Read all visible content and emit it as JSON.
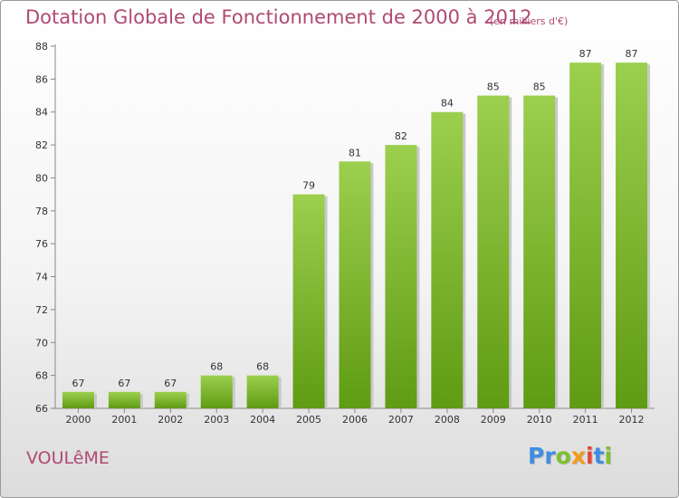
{
  "header": {
    "title": "Dotation Globale de Fonctionnement de 2000 à 2012",
    "units": "(en milliers d'€)"
  },
  "footer": {
    "commune": "VOULêME",
    "logo": [
      "P",
      "r",
      "o",
      "x",
      "i",
      "t",
      "i"
    ],
    "logo_colors": [
      "#3f8ee0",
      "#3f8ee0",
      "#7fbf2f",
      "#f39a1c",
      "#e8463a",
      "#3f8ee0",
      "#7fbf2f"
    ]
  },
  "colors": {
    "bar_light": "#9ccf4e",
    "bar_dark": "#5f9b14",
    "title": "#b04a72"
  },
  "chart_data": {
    "type": "bar",
    "categories": [
      "2000",
      "2001",
      "2002",
      "2003",
      "2004",
      "2005",
      "2006",
      "2007",
      "2008",
      "2009",
      "2010",
      "2011",
      "2012"
    ],
    "values": [
      67,
      67,
      67,
      68,
      68,
      79,
      81,
      82,
      84,
      85,
      85,
      87,
      87
    ],
    "y_ticks": [
      66,
      68,
      70,
      72,
      74,
      76,
      78,
      80,
      82,
      84,
      86,
      88
    ],
    "ylim": [
      66,
      88
    ],
    "grid": false
  }
}
